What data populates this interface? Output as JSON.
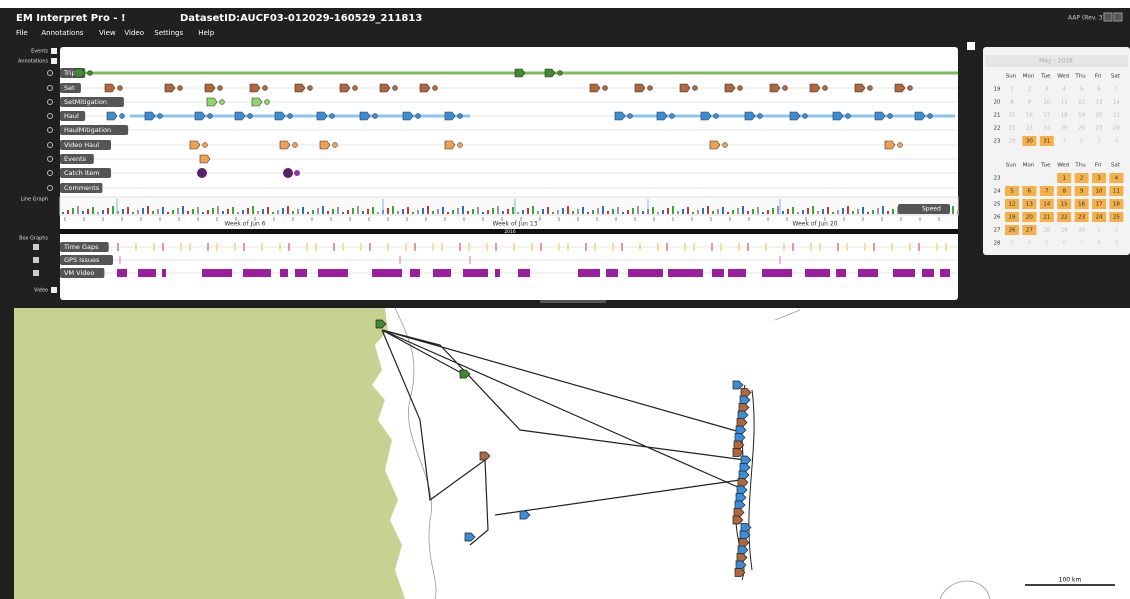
{
  "app": {
    "title": "EM Interpret Pro - !",
    "dataset": "DatasetID:AUCF03-012029-160529_211813",
    "version": "AAP (Rev. 37)"
  },
  "menu": [
    "File",
    "Annotations",
    "View",
    "Video",
    "Settings",
    "Help"
  ],
  "sidebar": {
    "events": "Events",
    "annotations": "Annotations",
    "line_graph": "Line Graph",
    "box_graphs": "Box Graphs",
    "video": "Video"
  },
  "tracks": [
    "Trip",
    "Set",
    "SetMitigation",
    "Haul",
    "HaulMitigation",
    "Video Haul",
    "Events",
    "Catch Item",
    "Comments"
  ],
  "box_tracks": [
    "Time Gaps",
    "GPS Issues",
    "VM Video"
  ],
  "timeline": {
    "weeks": [
      "Week of Jun 6",
      "Week of Jun 13",
      "Week of Jun 20"
    ],
    "year": "2016",
    "speed": "Speed"
  },
  "calendar": {
    "month": "May - 2016",
    "weekdays": [
      "Sun",
      "Mon",
      "Tue",
      "Wed",
      "Thu",
      "Fri",
      "Sat"
    ],
    "may": {
      "selected_range": [
        30,
        31
      ],
      "weeks": [
        {
          "week": "19",
          "days": [
            1,
            2,
            3,
            4,
            5,
            6,
            7
          ]
        },
        {
          "week": "20",
          "days": [
            8,
            9,
            10,
            11,
            12,
            13,
            14
          ]
        },
        {
          "week": "21",
          "days": [
            15,
            16,
            17,
            18,
            19,
            20,
            21
          ]
        },
        {
          "week": "22",
          "days": [
            22,
            23,
            24,
            25,
            26,
            27,
            28
          ]
        },
        {
          "week": "23",
          "days": [
            29,
            30,
            31
          ],
          "next": [
            1,
            2,
            3,
            4
          ]
        }
      ]
    },
    "june": {
      "selected_range": [
        1,
        27
      ],
      "weeks": [
        {
          "week": "23",
          "days": [
            1,
            2,
            3,
            4
          ]
        },
        {
          "week": "24",
          "days": [
            5,
            6,
            7,
            8,
            9,
            10,
            11
          ]
        },
        {
          "week": "25",
          "days": [
            12,
            13,
            14,
            15,
            16,
            17,
            18
          ]
        },
        {
          "week": "26",
          "days": [
            19,
            20,
            21,
            22,
            23,
            24,
            25
          ]
        },
        {
          "week": "27",
          "days": [
            26,
            27,
            28,
            29,
            30
          ],
          "next": [
            1,
            2
          ]
        },
        {
          "week": "28",
          "days": [],
          "next": [
            3,
            4,
            5,
            6,
            7,
            8,
            9
          ]
        }
      ]
    }
  },
  "map": {
    "scale": "100 km"
  }
}
